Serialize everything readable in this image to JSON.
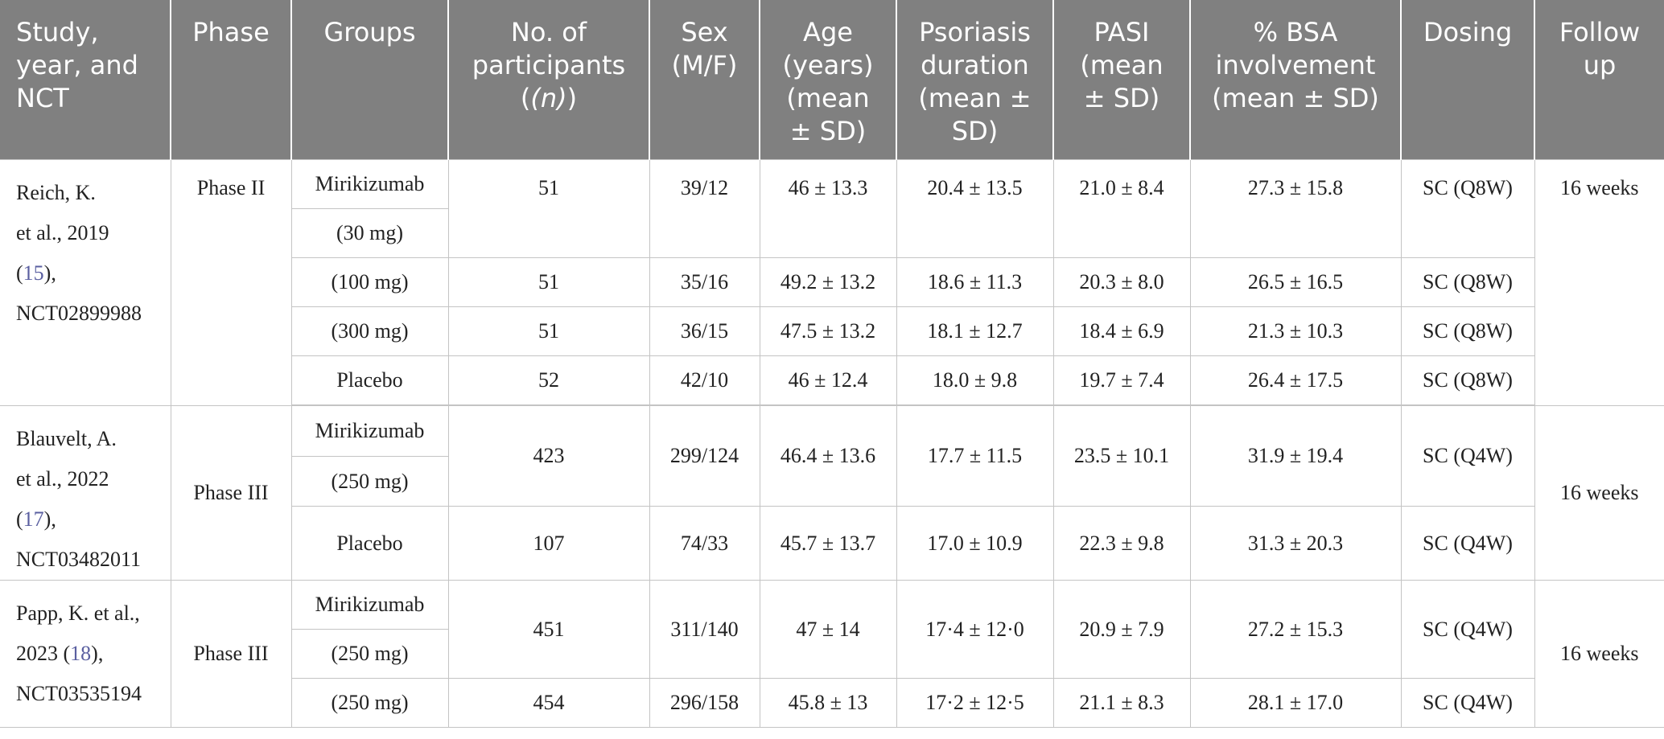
{
  "headers": {
    "study": [
      "Study,",
      "year, and",
      "NCT"
    ],
    "phase": "Phase",
    "groups": "Groups",
    "participants_1": "No. of",
    "participants_2": "participants",
    "participants_n": "(n)",
    "sex": [
      "Sex",
      "(M/F)"
    ],
    "age": [
      "Age",
      "(years)",
      "(mean",
      "± SD)"
    ],
    "duration": [
      "Psoriasis",
      "duration",
      "(mean ±",
      "SD)"
    ],
    "pasi": [
      "PASI",
      "(mean",
      "± SD)"
    ],
    "bsa": [
      "% BSA",
      "involvement",
      "(mean ± SD)"
    ],
    "dosing": "Dosing",
    "follow": [
      "Follow",
      "up"
    ]
  },
  "studies": [
    {
      "study_l1": "Reich, K.",
      "study_l2": "et al., 2019",
      "study_ref": "15",
      "study_l3_suffix": "),",
      "study_l4": "NCT02899988",
      "phase": "Phase II",
      "follow": "16 weeks",
      "rows": [
        {
          "group_a": "Mirikizumab",
          "group_b": "(30 mg)",
          "n": "51",
          "sex": "39/12",
          "age": "46 ± 13.3",
          "duration": "20.4 ± 13.5",
          "pasi": "21.0 ± 8.4",
          "bsa": "27.3 ± 15.8",
          "dosing": "SC (Q8W)"
        },
        {
          "group": "(100 mg)",
          "n": "51",
          "sex": "35/16",
          "age": "49.2 ± 13.2",
          "duration": "18.6 ± 11.3",
          "pasi": "20.3 ± 8.0",
          "bsa": "26.5 ± 16.5",
          "dosing": "SC (Q8W)"
        },
        {
          "group": "(300 mg)",
          "n": "51",
          "sex": "36/15",
          "age": "47.5 ± 13.2",
          "duration": "18.1 ± 12.7",
          "pasi": "18.4 ± 6.9",
          "bsa": "21.3 ± 10.3",
          "dosing": "SC (Q8W)"
        },
        {
          "group": "Placebo",
          "n": "52",
          "sex": "42/10",
          "age": "46 ± 12.4",
          "duration": "18.0 ± 9.8",
          "pasi": "19.7 ± 7.4",
          "bsa": "26.4 ± 17.5",
          "dosing": "SC (Q8W)"
        }
      ]
    },
    {
      "study_l1": "Blauvelt, A.",
      "study_l2": "et al., 2022",
      "study_ref": "17",
      "study_l3_suffix": "),",
      "study_l4": "NCT03482011",
      "phase": "Phase III",
      "follow": "16 weeks",
      "rows": [
        {
          "group_a": "Mirikizumab",
          "group_b": "(250 mg)",
          "n": "423",
          "sex": "299/124",
          "age": "46.4 ± 13.6",
          "duration": "17.7 ± 11.5",
          "pasi": "23.5 ± 10.1",
          "bsa": "31.9 ± 19.4",
          "dosing": "SC (Q4W)"
        },
        {
          "group": "Placebo",
          "n": "107",
          "sex": "74/33",
          "age": "45.7 ± 13.7",
          "duration": "17.0 ± 10.9",
          "pasi": "22.3 ± 9.8",
          "bsa": "31.3 ± 20.3",
          "dosing": "SC (Q4W)"
        }
      ]
    },
    {
      "study_l1": "Papp, K. et al.,",
      "study_l2_prefix": "2023 (",
      "study_ref": "18",
      "study_l2_suffix": "),",
      "study_l3": "NCT03535194",
      "phase": "Phase III",
      "follow": "16 weeks",
      "rows": [
        {
          "group_a": "Mirikizumab",
          "group_b": "(250 mg)",
          "n": "451",
          "sex": "311/140",
          "age": "47 ± 14",
          "duration": "17·4 ± 12·0",
          "pasi": "20.9 ± 7.9",
          "bsa": "27.2 ± 15.3",
          "dosing": "SC (Q4W)"
        },
        {
          "group": "(250 mg)",
          "n": "454",
          "sex": "296/158",
          "age": "45.8 ± 13",
          "duration": "17·2 ± 12·5",
          "pasi": "21.1 ± 8.3",
          "bsa": "28.1 ± 17.0",
          "dosing": "SC (Q4W)"
        }
      ]
    }
  ]
}
